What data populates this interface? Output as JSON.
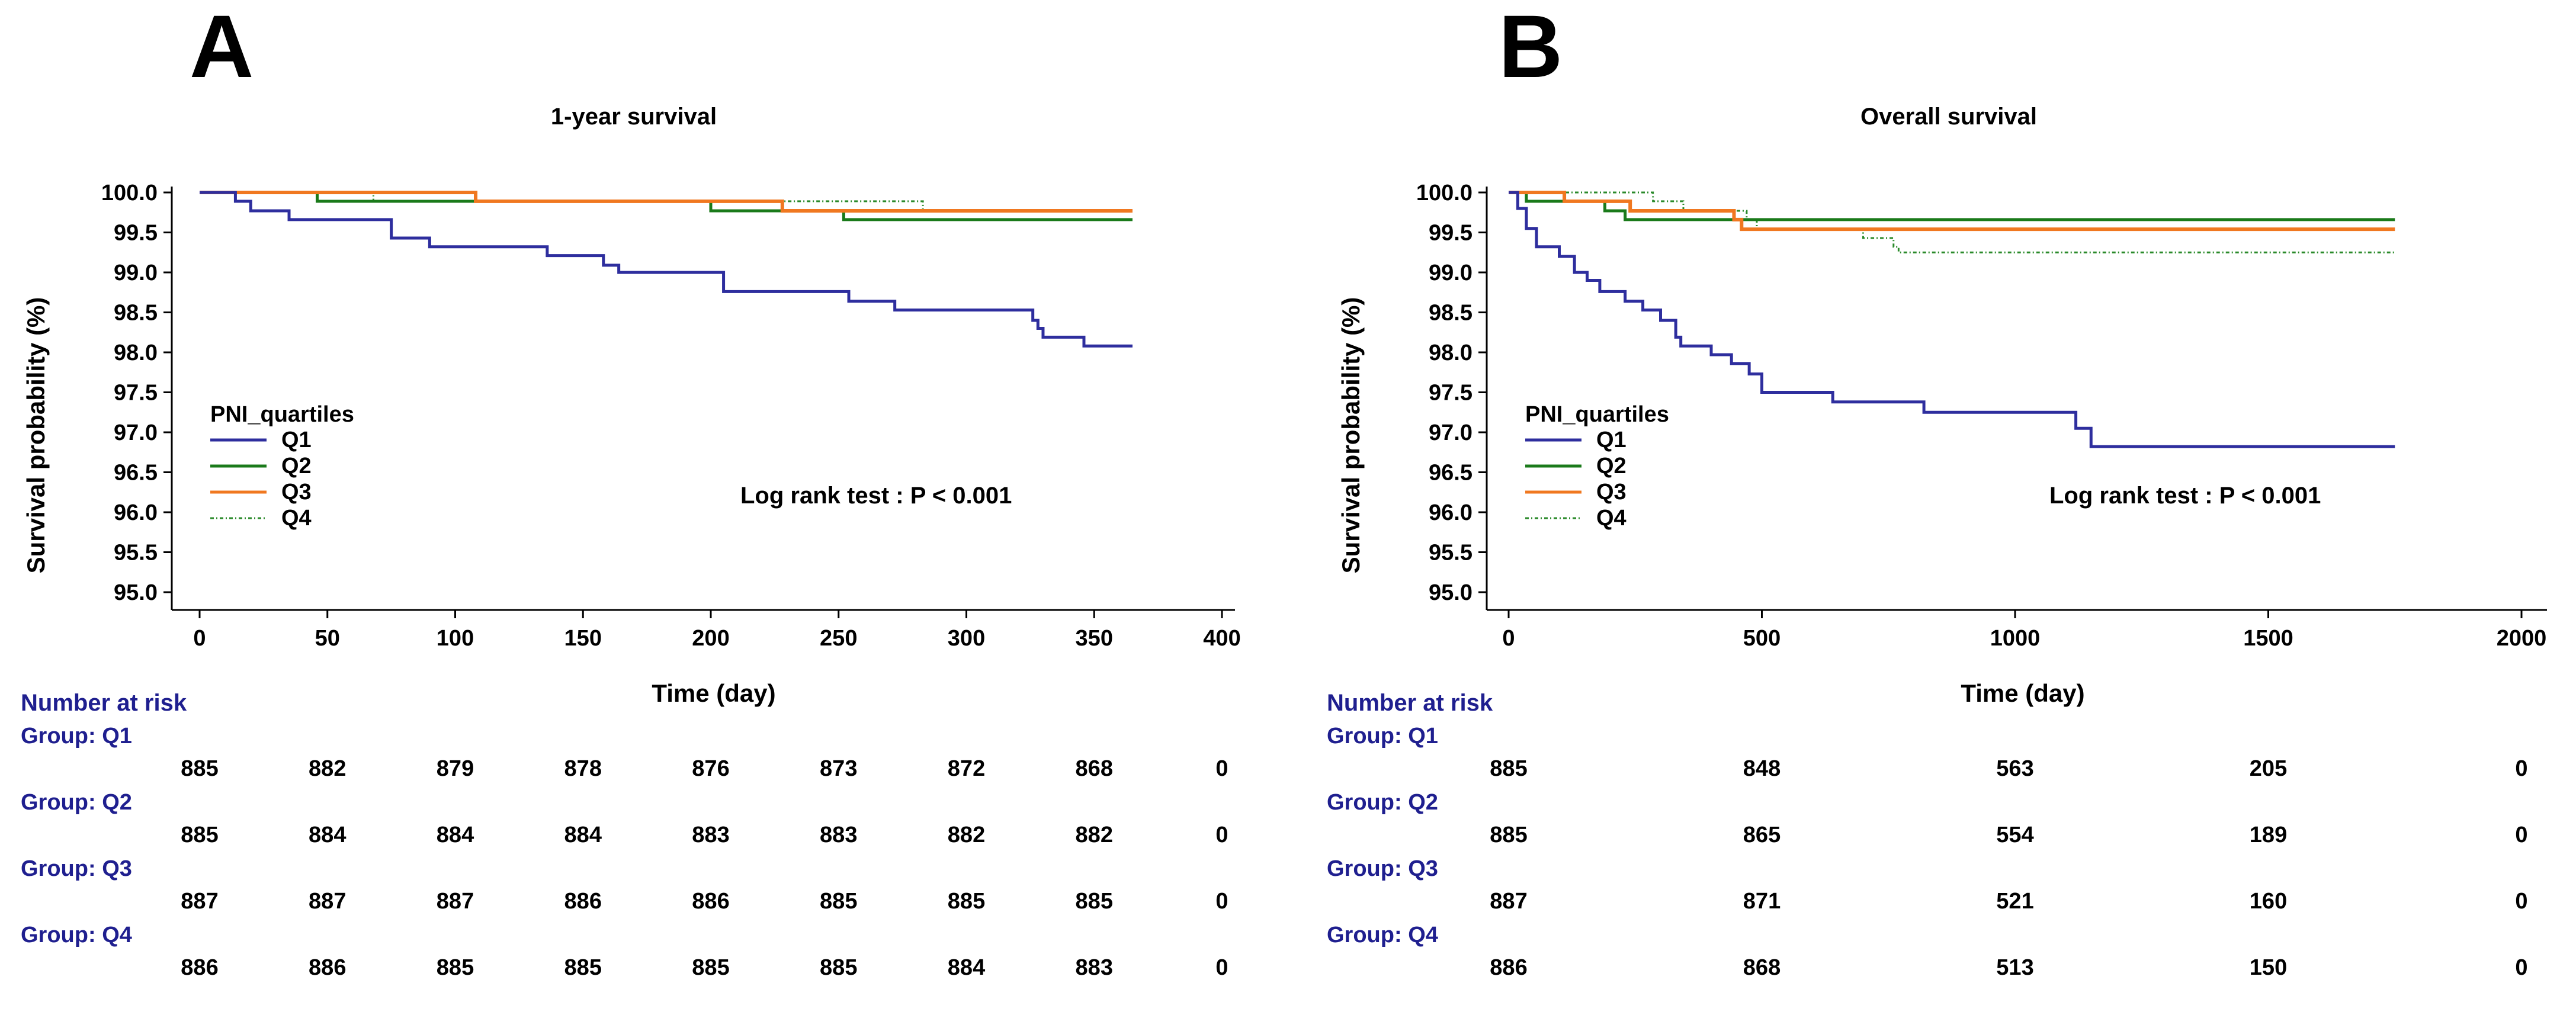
{
  "chart_data": [
    {
      "panel": "A",
      "type": "line",
      "title": "1-year survival",
      "xlabel": "Time (day)",
      "ylabel": "Survival probability (%)",
      "xlim": [
        0,
        400
      ],
      "ylim": [
        95.0,
        100.0
      ],
      "xticks": [
        "0",
        "50",
        "100",
        "150",
        "200",
        "250",
        "300",
        "350",
        "400"
      ],
      "yticks": [
        "95.0",
        "95.5",
        "96.0",
        "96.5",
        "97.0",
        "97.5",
        "98.0",
        "98.5",
        "99.0",
        "99.5",
        "100.0"
      ],
      "legend_title": "PNI_quartiles",
      "legend_placement": "bottom-left",
      "annotation": "Log rank test :  P < 0.001",
      "grid": false,
      "series": [
        {
          "name": "Q1",
          "color": "#2e2e9e",
          "dash": "",
          "steps": [
            [
              0,
              100.0
            ],
            [
              14,
              99.89
            ],
            [
              20,
              99.77
            ],
            [
              35,
              99.66
            ],
            [
              75,
              99.43
            ],
            [
              90,
              99.32
            ],
            [
              136,
              99.21
            ],
            [
              158,
              99.09
            ],
            [
              164,
              99.0
            ],
            [
              205,
              98.76
            ],
            [
              254,
              98.64
            ],
            [
              272,
              98.53
            ],
            [
              323,
              98.53
            ],
            [
              326,
              98.4
            ],
            [
              328,
              98.3
            ],
            [
              330,
              98.19
            ],
            [
              346,
              98.08
            ],
            [
              365,
              98.08
            ]
          ]
        },
        {
          "name": "Q2",
          "color": "#1a7a1a",
          "dash": "",
          "steps": [
            [
              0,
              100.0
            ],
            [
              46,
              99.89
            ],
            [
              200,
              99.77
            ],
            [
              252,
              99.66
            ],
            [
              365,
              99.66
            ]
          ]
        },
        {
          "name": "Q3",
          "color": "#f07820",
          "dash": "",
          "steps": [
            [
              0,
              100.0
            ],
            [
              108,
              99.89
            ],
            [
              228,
              99.77
            ],
            [
              365,
              99.77
            ]
          ]
        },
        {
          "name": "Q4",
          "color": "#2a8a2a",
          "dash": "6 4 2 4",
          "steps": [
            [
              0,
              100.0
            ],
            [
              68,
              99.89
            ],
            [
              228,
              99.89
            ],
            [
              283,
              99.77
            ],
            [
              365,
              99.77
            ]
          ]
        }
      ],
      "risk_table": {
        "header": "Number at risk",
        "columns": [
          "0",
          "50",
          "100",
          "150",
          "200",
          "250",
          "300",
          "350",
          "400"
        ],
        "groups": [
          {
            "label": "Group: Q1",
            "values": [
              "885",
              "882",
              "879",
              "878",
              "876",
              "873",
              "872",
              "868",
              "0"
            ]
          },
          {
            "label": "Group: Q2",
            "values": [
              "885",
              "884",
              "884",
              "884",
              "883",
              "883",
              "882",
              "882",
              "0"
            ]
          },
          {
            "label": "Group: Q3",
            "values": [
              "887",
              "887",
              "887",
              "886",
              "886",
              "885",
              "885",
              "885",
              "0"
            ]
          },
          {
            "label": "Group: Q4",
            "values": [
              "886",
              "886",
              "885",
              "885",
              "885",
              "885",
              "884",
              "883",
              "0"
            ]
          }
        ]
      }
    },
    {
      "panel": "B",
      "type": "line",
      "title": "Overall survival",
      "xlabel": "Time (day)",
      "ylabel": "Survival probability (%)",
      "xlim": [
        0,
        2000
      ],
      "ylim": [
        95.0,
        100.0
      ],
      "xticks": [
        "0",
        "500",
        "1000",
        "1500",
        "2000"
      ],
      "yticks": [
        "95.0",
        "95.5",
        "96.0",
        "96.5",
        "97.0",
        "97.5",
        "98.0",
        "98.5",
        "99.0",
        "99.5",
        "100.0"
      ],
      "legend_title": "PNI_quartiles",
      "legend_placement": "bottom-left",
      "annotation": "Log rank test :  P < 0.001",
      "grid": false,
      "series": [
        {
          "name": "Q1",
          "color": "#2e2e9e",
          "dash": "",
          "steps": [
            [
              0,
              100.0
            ],
            [
              18,
              99.8
            ],
            [
              35,
              99.55
            ],
            [
              55,
              99.32
            ],
            [
              100,
              99.2
            ],
            [
              130,
              99.0
            ],
            [
              155,
              98.9
            ],
            [
              180,
              98.76
            ],
            [
              230,
              98.64
            ],
            [
              265,
              98.53
            ],
            [
              300,
              98.4
            ],
            [
              330,
              98.19
            ],
            [
              340,
              98.08
            ],
            [
              400,
              97.97
            ],
            [
              440,
              97.86
            ],
            [
              475,
              97.73
            ],
            [
              500,
              97.5
            ],
            [
              640,
              97.38
            ],
            [
              820,
              97.25
            ],
            [
              1120,
              97.05
            ],
            [
              1150,
              96.82
            ],
            [
              1750,
              96.82
            ]
          ]
        },
        {
          "name": "Q2",
          "color": "#1a7a1a",
          "dash": "",
          "steps": [
            [
              0,
              100.0
            ],
            [
              35,
              99.89
            ],
            [
              190,
              99.77
            ],
            [
              230,
              99.66
            ],
            [
              490,
              99.66
            ],
            [
              1750,
              99.66
            ]
          ]
        },
        {
          "name": "Q3",
          "color": "#f07820",
          "dash": "",
          "steps": [
            [
              0,
              100.0
            ],
            [
              110,
              99.89
            ],
            [
              240,
              99.77
            ],
            [
              445,
              99.66
            ],
            [
              460,
              99.54
            ],
            [
              1750,
              99.54
            ]
          ]
        },
        {
          "name": "Q4",
          "color": "#2a8a2a",
          "dash": "6 4 2 4",
          "steps": [
            [
              0,
              100.0
            ],
            [
              285,
              99.89
            ],
            [
              345,
              99.77
            ],
            [
              470,
              99.66
            ],
            [
              490,
              99.54
            ],
            [
              700,
              99.43
            ],
            [
              760,
              99.32
            ],
            [
              770,
              99.25
            ],
            [
              1750,
              99.25
            ]
          ]
        }
      ],
      "risk_table": {
        "header": "Number at risk",
        "columns": [
          "0",
          "500",
          "1000",
          "1500",
          "2000"
        ],
        "groups": [
          {
            "label": "Group: Q1",
            "values": [
              "885",
              "848",
              "563",
              "205",
              "0"
            ]
          },
          {
            "label": "Group: Q2",
            "values": [
              "885",
              "865",
              "554",
              "189",
              "0"
            ]
          },
          {
            "label": "Group: Q3",
            "values": [
              "887",
              "871",
              "521",
              "160",
              "0"
            ]
          },
          {
            "label": "Group: Q4",
            "values": [
              "886",
              "868",
              "513",
              "150",
              "0"
            ]
          }
        ]
      }
    }
  ]
}
